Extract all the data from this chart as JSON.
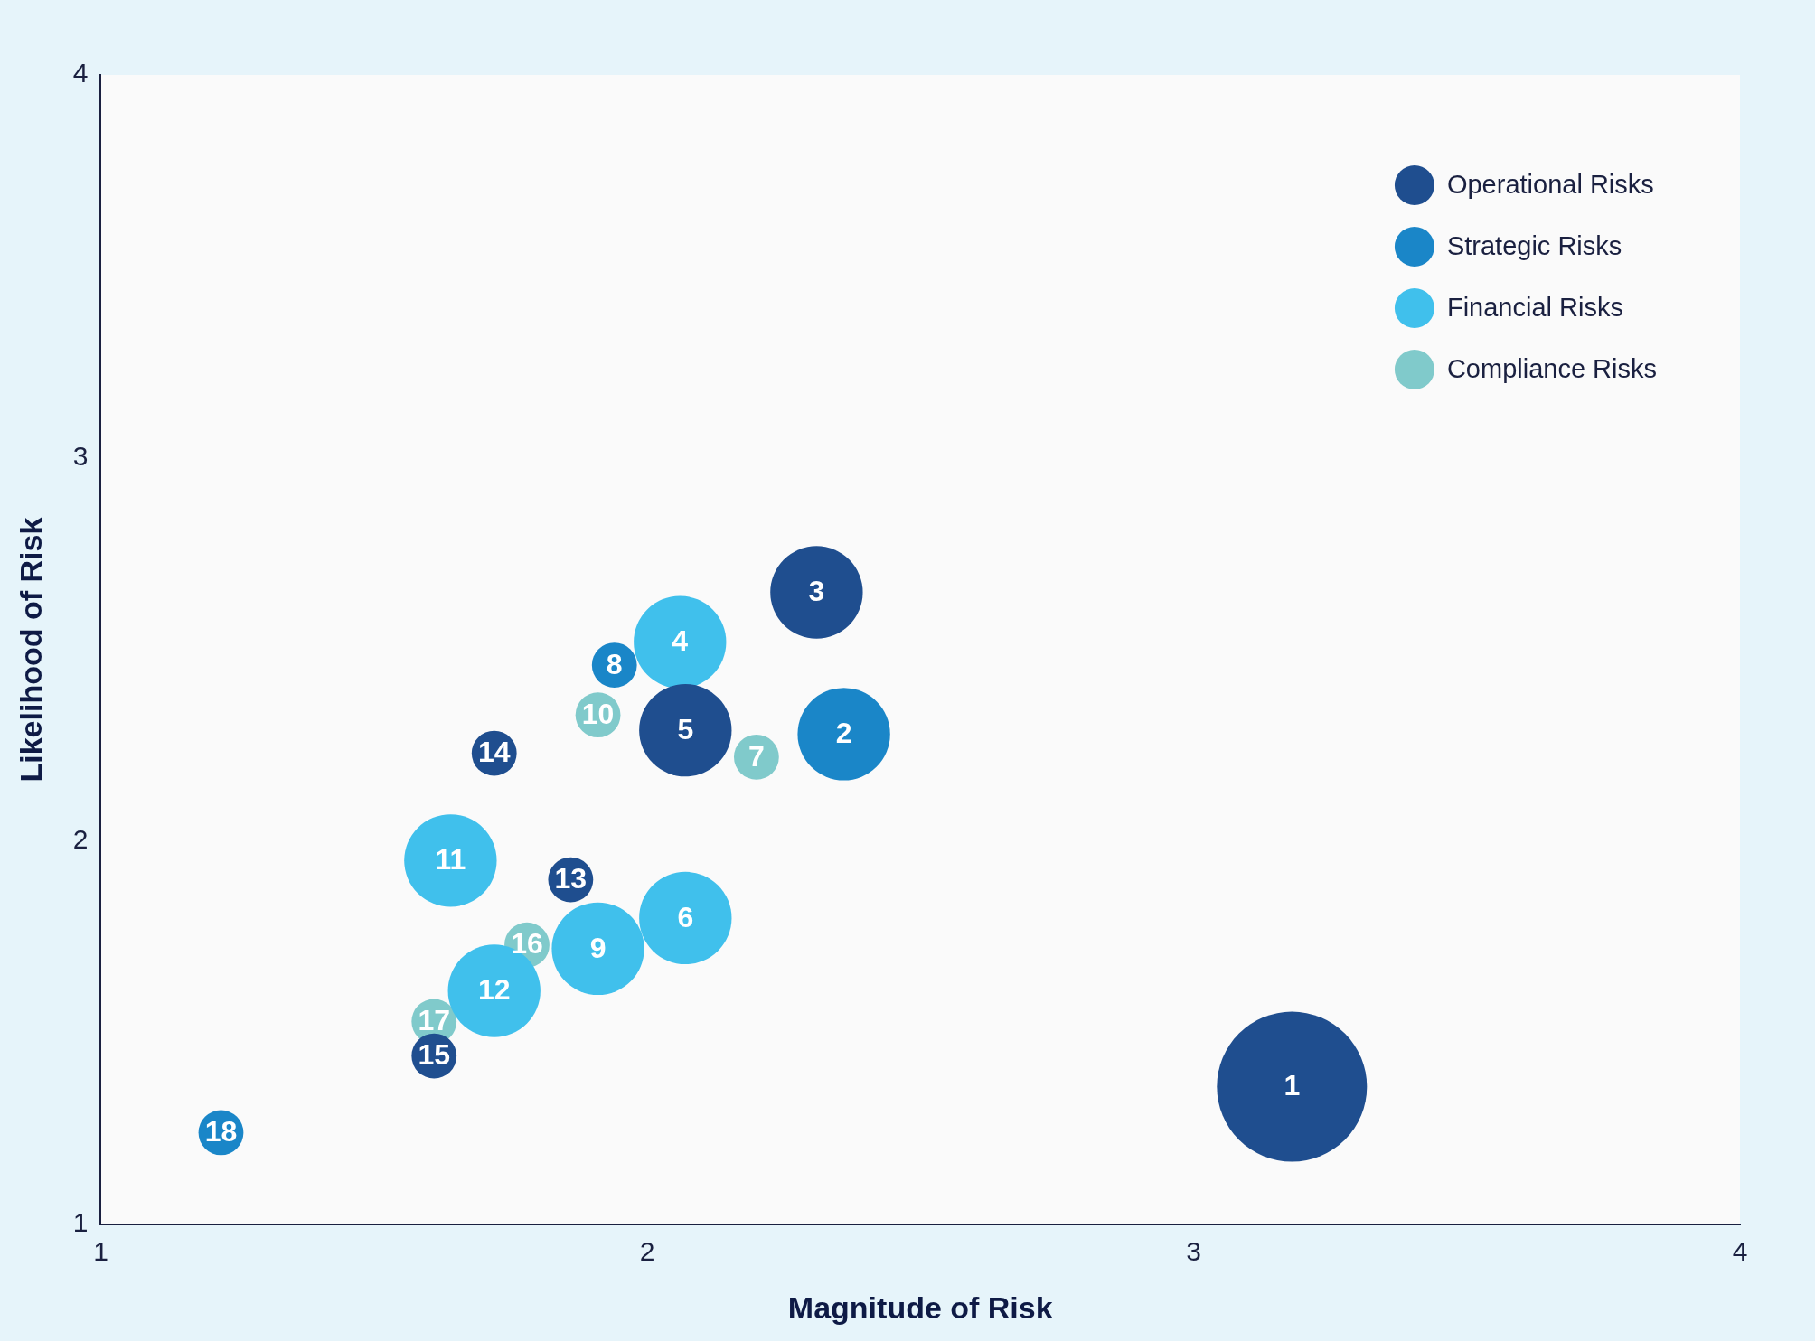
{
  "chart_data": {
    "type": "bubble",
    "xlabel": "Magnitude of Risk",
    "ylabel": "Likelihood of Risk",
    "xlim": [
      1,
      4
    ],
    "ylim": [
      1,
      4
    ],
    "xticks": [
      1,
      2,
      3,
      4
    ],
    "yticks": [
      1,
      2,
      3,
      4
    ],
    "grid": false,
    "legend": "top right",
    "series": [
      {
        "name": "Operational Risks",
        "color": "#1f4e8f",
        "x": [
          3.18,
          2.31,
          2.07,
          1.86,
          1.72,
          1.61
        ],
        "values": [
          1.36,
          2.65,
          2.29,
          1.9,
          2.23,
          1.44
        ],
        "sizes": [
          1,
          0.38,
          0.38,
          0.09,
          0.09,
          0.09
        ]
      },
      {
        "name": "Strategic Risks",
        "color": "#1a86c8",
        "x": [
          2.36,
          1.94,
          1.22
        ],
        "values": [
          2.28,
          2.46,
          1.24
        ],
        "sizes": [
          0.38,
          0.09,
          0.09
        ]
      },
      {
        "name": "Financial Risks",
        "color": "#40c0ec",
        "x": [
          2.06,
          2.07,
          1.91,
          1.64,
          1.72
        ],
        "values": [
          2.52,
          1.8,
          1.72,
          1.95,
          1.61
        ],
        "sizes": [
          0.38,
          0.38,
          0.38,
          0.38,
          0.38
        ]
      },
      {
        "name": "Compliance Risks",
        "color": "#80cacb",
        "x": [
          2.2,
          1.91,
          1.78,
          1.61
        ],
        "values": [
          2.22,
          2.33,
          1.73,
          1.53
        ],
        "sizes": [
          0.09,
          0.09,
          0.09,
          0.09
        ]
      }
    ],
    "annotations": [
      {
        "text": "1",
        "x": 3.18,
        "y": 1.36
      },
      {
        "text": "2",
        "x": 2.36,
        "y": 2.28
      },
      {
        "text": "3",
        "x": 2.31,
        "y": 2.65
      },
      {
        "text": "4",
        "x": 2.06,
        "y": 2.52
      },
      {
        "text": "5",
        "x": 2.07,
        "y": 2.29
      },
      {
        "text": "6",
        "x": 2.07,
        "y": 1.8
      },
      {
        "text": "7",
        "x": 2.2,
        "y": 2.22
      },
      {
        "text": "8",
        "x": 1.94,
        "y": 2.46
      },
      {
        "text": "9",
        "x": 1.91,
        "y": 1.72
      },
      {
        "text": "10",
        "x": 1.91,
        "y": 2.33
      },
      {
        "text": "11",
        "x": 1.64,
        "y": 1.95
      },
      {
        "text": "12",
        "x": 1.72,
        "y": 1.61
      },
      {
        "text": "13",
        "x": 1.86,
        "y": 1.9
      },
      {
        "text": "14",
        "x": 1.72,
        "y": 2.23
      },
      {
        "text": "15",
        "x": 1.61,
        "y": 1.44
      },
      {
        "text": "16",
        "x": 1.78,
        "y": 1.73
      },
      {
        "text": "17",
        "x": 1.61,
        "y": 1.53
      },
      {
        "text": "18",
        "x": 1.22,
        "y": 1.24
      }
    ]
  }
}
